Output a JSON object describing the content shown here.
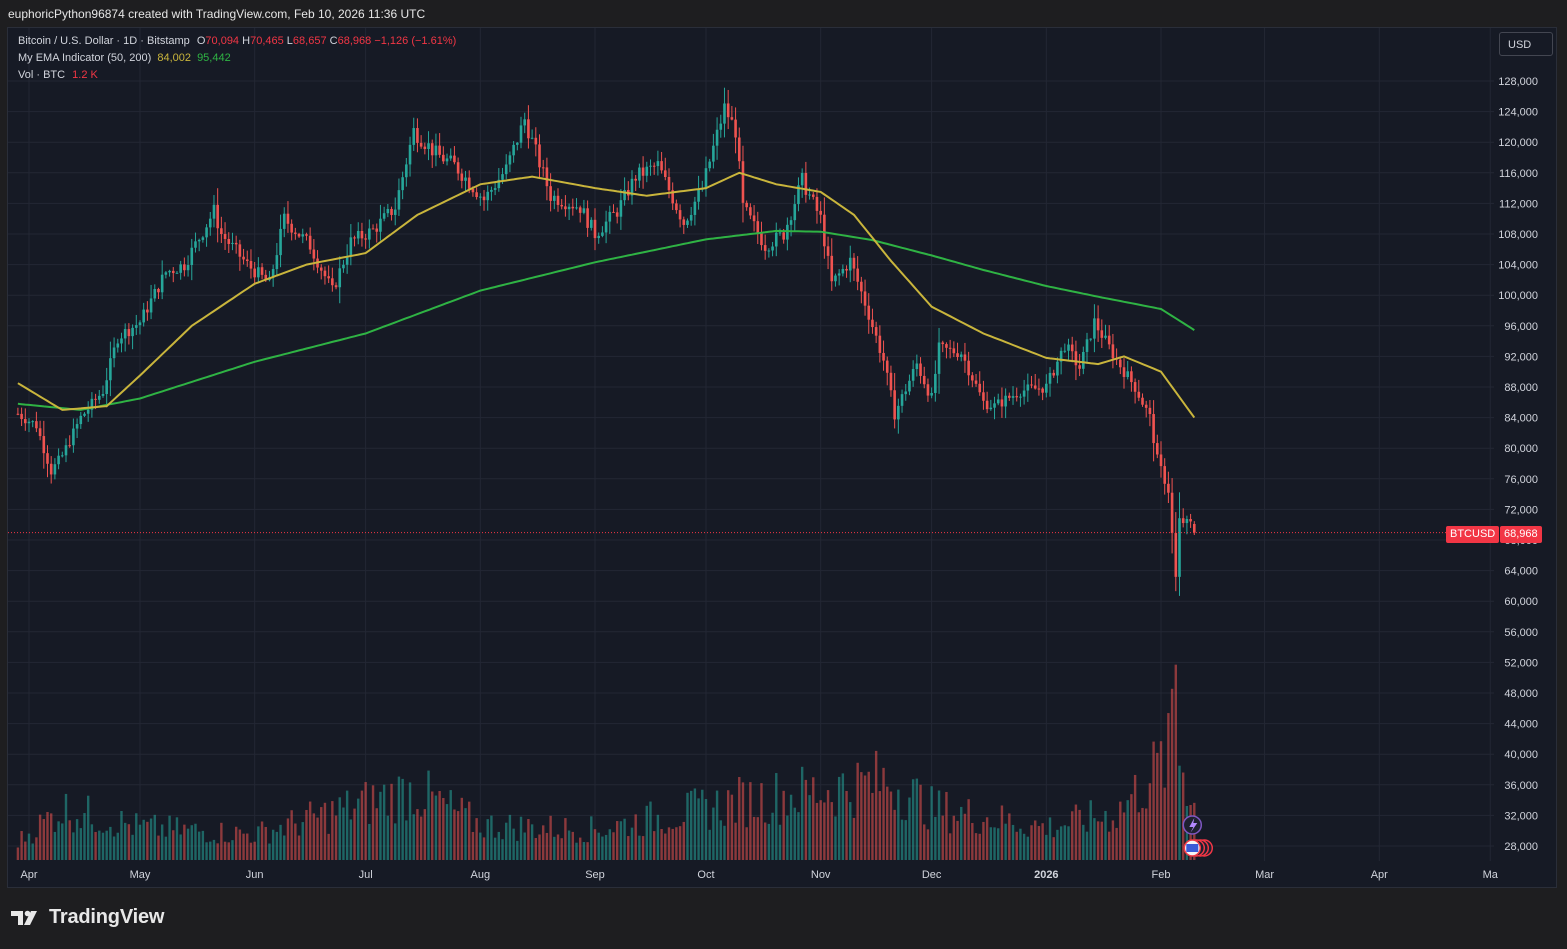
{
  "header": {
    "credit": "euphoricPython96874 created with TradingView.com, Feb 10, 2026 11:36 UTC"
  },
  "legend": {
    "symbol": "Bitcoin / U.S. Dollar · 1D · Bitstamp",
    "o_label": "O",
    "o_value": "70,094",
    "h_label": "H",
    "h_value": "70,465",
    "l_label": "L",
    "l_value": "68,657",
    "c_label": "C",
    "c_value": "68,968",
    "change": "−1,126 (−1.61%)",
    "ema_name": "My EMA Indicator (50, 200)",
    "ema_fast_value": "84,002",
    "ema_slow_value": "95,442",
    "vol_name": "Vol · BTC",
    "vol_value": "1.2 K"
  },
  "currency_button": "USD",
  "price_label": {
    "symbol": "BTCUSD",
    "value": "68,968"
  },
  "brand": {
    "name": "TradingView"
  },
  "colors": {
    "up": "#26a69a",
    "down": "#ef5350",
    "ema_fast": "#c9b53c",
    "ema_slow": "#2fb344",
    "background": "#161a25",
    "grid": "#232734",
    "axis_text": "#d1d4dc"
  },
  "chart_data": {
    "type": "candlestick",
    "title": "",
    "x_ticks": [
      "Apr",
      "May",
      "Jun",
      "Jul",
      "Aug",
      "Sep",
      "Oct",
      "Nov",
      "Dec",
      "2026",
      "Feb",
      "Mar",
      "Apr",
      "Ma"
    ],
    "x_tick_dates": [
      "2025-04-01",
      "2025-05-01",
      "2025-06-01",
      "2025-07-01",
      "2025-08-01",
      "2025-09-01",
      "2025-10-01",
      "2025-11-01",
      "2025-12-01",
      "2026-01-01",
      "2026-02-01",
      "2026-03-01",
      "2026-04-01",
      "2026-05-01"
    ],
    "y_ticks": [
      28000,
      32000,
      36000,
      40000,
      44000,
      48000,
      52000,
      56000,
      60000,
      64000,
      68000,
      72000,
      76000,
      80000,
      84000,
      88000,
      92000,
      96000,
      100000,
      104000,
      108000,
      112000,
      116000,
      120000,
      124000,
      128000
    ],
    "ylim": [
      26000,
      131000
    ],
    "grid": true,
    "date_range": [
      "2025-03-29",
      "2026-02-10"
    ],
    "close_anchors": [
      [
        "2025-03-29",
        84500
      ],
      [
        "2025-04-03",
        83000
      ],
      [
        "2025-04-07",
        77000
      ],
      [
        "2025-04-10",
        79000
      ],
      [
        "2025-04-15",
        84000
      ],
      [
        "2025-04-21",
        87500
      ],
      [
        "2025-04-25",
        94500
      ],
      [
        "2025-05-01",
        96500
      ],
      [
        "2025-05-08",
        103000
      ],
      [
        "2025-05-13",
        104000
      ],
      [
        "2025-05-21",
        111000
      ],
      [
        "2025-05-23",
        108000
      ],
      [
        "2025-05-30",
        104000
      ],
      [
        "2025-06-05",
        101500
      ],
      [
        "2025-06-09",
        110000
      ],
      [
        "2025-06-16",
        106500
      ],
      [
        "2025-06-22",
        100500
      ],
      [
        "2025-06-27",
        107000
      ],
      [
        "2025-07-03",
        108500
      ],
      [
        "2025-07-09",
        111500
      ],
      [
        "2025-07-14",
        121500
      ],
      [
        "2025-07-20",
        118500
      ],
      [
        "2025-07-25",
        117000
      ],
      [
        "2025-08-02",
        112500
      ],
      [
        "2025-08-08",
        116500
      ],
      [
        "2025-08-13",
        123000
      ],
      [
        "2025-08-20",
        113000
      ],
      [
        "2025-08-28",
        111500
      ],
      [
        "2025-09-01",
        108000
      ],
      [
        "2025-09-07",
        111000
      ],
      [
        "2025-09-12",
        115500
      ],
      [
        "2025-09-18",
        117000
      ],
      [
        "2025-09-25",
        109500
      ],
      [
        "2025-09-30",
        114000
      ],
      [
        "2025-10-06",
        124500
      ],
      [
        "2025-10-09",
        121500
      ],
      [
        "2025-10-11",
        111500
      ],
      [
        "2025-10-17",
        106500
      ],
      [
        "2025-10-22",
        108000
      ],
      [
        "2025-10-27",
        115000
      ],
      [
        "2025-11-01",
        110000
      ],
      [
        "2025-11-04",
        101500
      ],
      [
        "2025-11-09",
        104500
      ],
      [
        "2025-11-13",
        99000
      ],
      [
        "2025-11-18",
        91500
      ],
      [
        "2025-11-21",
        84500
      ],
      [
        "2025-11-27",
        91000
      ],
      [
        "2025-12-01",
        86500
      ],
      [
        "2025-12-03",
        93000
      ],
      [
        "2025-12-09",
        92500
      ],
      [
        "2025-12-15",
        86000
      ],
      [
        "2025-12-18",
        85500
      ],
      [
        "2025-12-25",
        87500
      ],
      [
        "2026-01-01",
        88000
      ],
      [
        "2026-01-06",
        93500
      ],
      [
        "2026-01-10",
        90500
      ],
      [
        "2026-01-14",
        96500
      ],
      [
        "2026-01-20",
        91500
      ],
      [
        "2026-01-25",
        88000
      ],
      [
        "2026-01-29",
        84000
      ],
      [
        "2026-01-31",
        78500
      ],
      [
        "2026-02-03",
        74500
      ],
      [
        "2026-02-05",
        63000
      ],
      [
        "2026-02-06",
        70500
      ],
      [
        "2026-02-09",
        70094
      ],
      [
        "2026-02-10",
        68968
      ]
    ],
    "last_candle": {
      "date": "2026-02-10",
      "open": 70094,
      "high": 70465,
      "low": 68657,
      "close": 68968
    },
    "ema_fast_anchors": [
      [
        "2025-03-29",
        88500
      ],
      [
        "2025-04-10",
        85000
      ],
      [
        "2025-04-22",
        85500
      ],
      [
        "2025-05-01",
        89500
      ],
      [
        "2025-05-15",
        96000
      ],
      [
        "2025-06-01",
        101500
      ],
      [
        "2025-06-15",
        104000
      ],
      [
        "2025-07-01",
        105500
      ],
      [
        "2025-07-15",
        110500
      ],
      [
        "2025-08-01",
        114500
      ],
      [
        "2025-08-15",
        115500
      ],
      [
        "2025-09-01",
        114000
      ],
      [
        "2025-09-15",
        113000
      ],
      [
        "2025-10-01",
        114000
      ],
      [
        "2025-10-10",
        116000
      ],
      [
        "2025-10-20",
        114500
      ],
      [
        "2025-11-01",
        113500
      ],
      [
        "2025-11-10",
        110500
      ],
      [
        "2025-11-20",
        104500
      ],
      [
        "2025-12-01",
        98500
      ],
      [
        "2025-12-15",
        95000
      ],
      [
        "2026-01-01",
        91800
      ],
      [
        "2026-01-15",
        91000
      ],
      [
        "2026-01-22",
        92000
      ],
      [
        "2026-02-01",
        90000
      ],
      [
        "2026-02-10",
        84002
      ]
    ],
    "ema_slow_anchors": [
      [
        "2025-03-29",
        85800
      ],
      [
        "2025-04-15",
        85000
      ],
      [
        "2025-05-01",
        86500
      ],
      [
        "2025-06-01",
        91300
      ],
      [
        "2025-07-01",
        95000
      ],
      [
        "2025-08-01",
        100600
      ],
      [
        "2025-09-01",
        104300
      ],
      [
        "2025-10-01",
        107300
      ],
      [
        "2025-10-20",
        108400
      ],
      [
        "2025-11-01",
        108300
      ],
      [
        "2025-11-15",
        107200
      ],
      [
        "2025-12-01",
        105200
      ],
      [
        "2025-12-15",
        103300
      ],
      [
        "2026-01-01",
        101200
      ],
      [
        "2026-01-15",
        99800
      ],
      [
        "2026-02-01",
        98200
      ],
      [
        "2026-02-10",
        95442
      ]
    ],
    "volume_ylim": [
      0,
      4500
    ],
    "volume_anchors": [
      [
        "2025-03-29",
        400
      ],
      [
        "2025-04-10",
        1100
      ],
      [
        "2025-05-01",
        700
      ],
      [
        "2025-06-01",
        550
      ],
      [
        "2025-07-14",
        1500
      ],
      [
        "2025-08-01",
        750
      ],
      [
        "2025-09-01",
        650
      ],
      [
        "2025-10-10",
        1250
      ],
      [
        "2025-11-20",
        1700
      ],
      [
        "2025-12-01",
        1100
      ],
      [
        "2026-01-01",
        700
      ],
      [
        "2026-01-20",
        1000
      ],
      [
        "2026-02-03",
        2200
      ],
      [
        "2026-02-05",
        4300
      ],
      [
        "2026-02-06",
        2300
      ],
      [
        "2026-02-10",
        1200
      ]
    ]
  }
}
